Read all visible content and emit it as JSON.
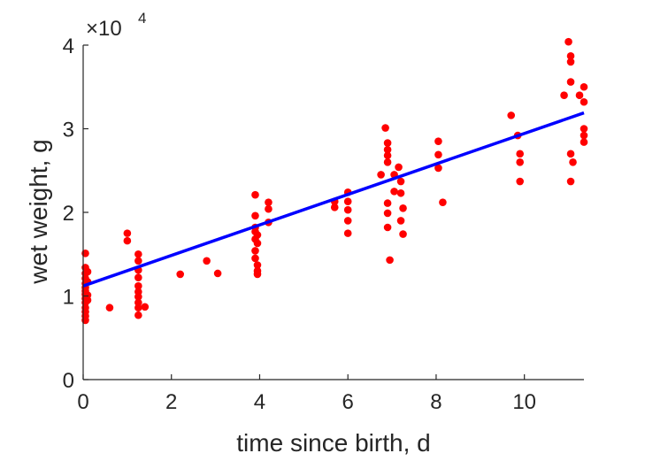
{
  "chart_data": {
    "type": "scatter",
    "xlabel": "time since birth, d",
    "ylabel": "wet weight, g",
    "exponent_label": {
      "times": "×10",
      "power": "4"
    },
    "xlim": [
      0,
      11.35
    ],
    "ylim": [
      0,
      40000
    ],
    "x_ticks": [
      0,
      2,
      4,
      6,
      8,
      10
    ],
    "y_ticks": [
      0,
      10000,
      20000,
      30000,
      40000
    ],
    "x_tick_labels": [
      "0",
      "2",
      "4",
      "6",
      "8",
      "10"
    ],
    "y_tick_labels": [
      "0",
      "1",
      "2",
      "3",
      "4"
    ],
    "grid": false,
    "colors": {
      "points": "#ff0000",
      "fit": "#0000ff",
      "axis": "#262626"
    },
    "series": [
      {
        "kind": "points",
        "x": [
          0.05,
          0.05,
          0.05,
          0.05,
          0.05,
          0.05,
          0.05,
          0.05,
          0.05,
          0.05,
          0.05,
          0.05,
          0.05,
          0.05,
          0.1,
          0.1,
          0.1,
          0.1,
          0.6,
          1.0,
          1.0,
          1.25,
          1.25,
          1.25,
          1.25,
          1.25,
          1.25,
          1.25,
          1.25,
          1.25,
          1.25,
          1.4,
          2.2,
          2.8,
          3.05,
          3.9,
          3.9,
          3.9,
          3.9,
          3.9,
          3.9,
          3.9,
          3.95,
          3.95,
          3.95,
          3.95,
          3.95,
          4.2,
          4.2,
          4.2,
          5.7,
          5.7,
          6.0,
          6.0,
          6.0,
          6.0,
          6.0,
          6.75,
          6.85,
          6.9,
          6.9,
          6.9,
          6.9,
          6.9,
          6.9,
          6.9,
          6.95,
          7.05,
          7.05,
          7.15,
          7.2,
          7.2,
          7.2,
          7.25,
          7.25,
          8.05,
          8.05,
          8.05,
          8.15,
          9.7,
          9.85,
          9.9,
          9.9,
          9.9,
          10.9,
          11.0,
          11.05,
          11.05,
          11.05,
          11.05,
          11.05,
          11.1,
          11.25,
          11.35,
          11.35,
          11.35,
          11.35,
          11.35
        ],
        "y": [
          15100,
          13400,
          12700,
          12100,
          11500,
          11000,
          10600,
          10200,
          9700,
          9200,
          8600,
          8100,
          7600,
          7100,
          12900,
          11700,
          10100,
          9500,
          8600,
          17500,
          16600,
          15000,
          14200,
          13100,
          12200,
          11200,
          10500,
          9900,
          9200,
          8600,
          7700,
          8700,
          12600,
          14200,
          12700,
          22100,
          19600,
          18200,
          17700,
          16800,
          15400,
          14500,
          17300,
          16300,
          13700,
          13000,
          12600,
          21200,
          20400,
          18800,
          21300,
          20600,
          22400,
          21300,
          20300,
          19000,
          17500,
          24500,
          30100,
          28300,
          27500,
          26800,
          26000,
          21100,
          19900,
          18200,
          14300,
          24500,
          22500,
          25400,
          23700,
          22300,
          19000,
          20500,
          17400,
          28500,
          26900,
          25300,
          21200,
          31600,
          29200,
          27000,
          26000,
          23700,
          34000,
          40400,
          38700,
          38000,
          35600,
          27000,
          23700,
          26000,
          34000,
          35000,
          33200,
          30000,
          29200,
          28400
        ]
      },
      {
        "kind": "fit",
        "x": [
          0,
          11.35
        ],
        "y": [
          11200,
          31900
        ]
      }
    ]
  }
}
